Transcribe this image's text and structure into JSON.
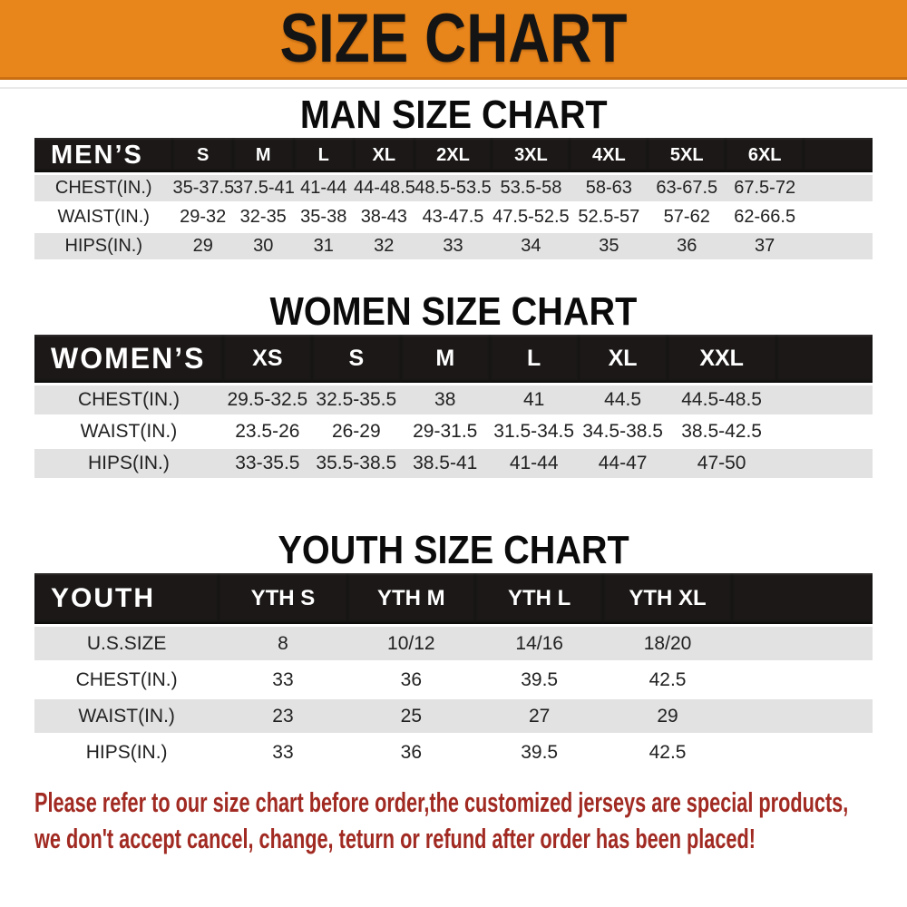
{
  "banner": {
    "title": "SIZE CHART"
  },
  "sections": [
    {
      "heading": "MAN SIZE CHART",
      "table": {
        "header_label": "MEN’S",
        "columns": [
          "S",
          "M",
          "L",
          "XL",
          "2XL",
          "3XL",
          "4XL",
          "5XL",
          "6XL"
        ],
        "rows": [
          {
            "label": "CHEST(IN.)",
            "values": [
              "35-37.5",
              "37.5-41",
              "41-44",
              "44-48.5",
              "48.5-53.5",
              "53.5-58",
              "58-63",
              "63-67.5",
              "67.5-72"
            ]
          },
          {
            "label": "WAIST(IN.)",
            "values": [
              "29-32",
              "32-35",
              "35-38",
              "38-43",
              "43-47.5",
              "47.5-52.5",
              "52.5-57",
              "57-62",
              "62-66.5"
            ]
          },
          {
            "label": "HIPS(IN.)",
            "values": [
              "29",
              "30",
              "31",
              "32",
              "33",
              "34",
              "35",
              "36",
              "37"
            ]
          }
        ]
      }
    },
    {
      "heading": "WOMEN SIZE CHART",
      "table": {
        "header_label": "WOMEN’S",
        "columns": [
          "XS",
          "S",
          "M",
          "L",
          "XL",
          "XXL"
        ],
        "rows": [
          {
            "label": "CHEST(IN.)",
            "values": [
              "29.5-32.5",
              "32.5-35.5",
              "38",
              "41",
              "44.5",
              "44.5-48.5"
            ]
          },
          {
            "label": "WAIST(IN.)",
            "values": [
              "23.5-26",
              "26-29",
              "29-31.5",
              "31.5-34.5",
              "34.5-38.5",
              "38.5-42.5"
            ]
          },
          {
            "label": "HIPS(IN.)",
            "values": [
              "33-35.5",
              "35.5-38.5",
              "38.5-41",
              "41-44",
              "44-47",
              "47-50"
            ]
          }
        ]
      }
    },
    {
      "heading": "YOUTH SIZE CHART",
      "table": {
        "header_label": "YOUTH",
        "columns": [
          "YTH S",
          "YTH M",
          "YTH L",
          "YTH XL"
        ],
        "rows": [
          {
            "label": "U.S.SIZE",
            "values": [
              "8",
              "10/12",
              "14/16",
              "18/20"
            ]
          },
          {
            "label": "CHEST(IN.)",
            "values": [
              "33",
              "36",
              "39.5",
              "42.5"
            ]
          },
          {
            "label": "WAIST(IN.)",
            "values": [
              "23",
              "25",
              "27",
              "29"
            ]
          },
          {
            "label": "HIPS(IN.)",
            "values": [
              "33",
              "36",
              "39.5",
              "42.5"
            ]
          }
        ]
      }
    }
  ],
  "footnote": {
    "line1": "Please refer to our size chart before order,the customized jerseys are special products,",
    "line2": "we don't accept cancel, change, teturn or refund after order has been placed!"
  },
  "colors": {
    "banner_orange": "#E8861C",
    "table_header_black": "#1B1817",
    "row_stripe_gray": "#E2E2E2",
    "footnote_red": "#A12A22"
  }
}
